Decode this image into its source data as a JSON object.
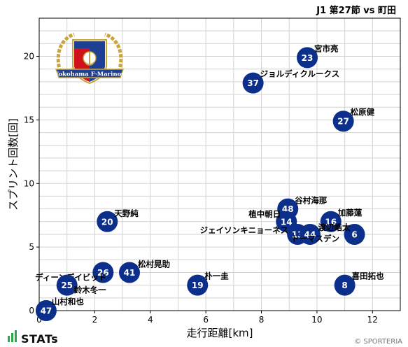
{
  "header": {
    "match_title": "J1 第27節 vs 町田"
  },
  "footer": {
    "brand": "STATs",
    "credit": "© SPORTERIA"
  },
  "logo": {
    "text": "Yokohama F·Marinos",
    "colors": {
      "gold": "#c9a43a",
      "blue": "#1d3f94",
      "red": "#d0121b"
    }
  },
  "chart_data": {
    "type": "scatter",
    "xlabel": "走行距離[km]",
    "ylabel": "スプリント回数[回]",
    "xlim": [
      0,
      13
    ],
    "ylim": [
      0,
      23
    ],
    "xticks": [
      0,
      2,
      4,
      6,
      8,
      10,
      12
    ],
    "yticks": [
      0,
      5,
      10,
      15,
      20
    ],
    "grid": true,
    "marker_color": "#0d2f8c",
    "points": [
      {
        "number": "23",
        "name": "宮市亮",
        "x": 9.65,
        "y": 19.9
      },
      {
        "number": "37",
        "name": "ジョルディクルークス",
        "x": 7.7,
        "y": 17.9
      },
      {
        "number": "27",
        "name": "松原健",
        "x": 10.95,
        "y": 14.9
      },
      {
        "number": "48",
        "name": "谷村海那",
        "x": 8.95,
        "y": 8.0
      },
      {
        "number": "14",
        "name": "植中朝日",
        "x": 8.9,
        "y": 7.0
      },
      {
        "number": "16",
        "name": "加藤蓮",
        "x": 10.5,
        "y": 7.0
      },
      {
        "number": "13",
        "name": "ジェイソンキニョーネス",
        "x": 9.3,
        "y": 6.0
      },
      {
        "number": "44",
        "name": "トーマスデン",
        "x": 9.75,
        "y": 6.0
      },
      {
        "number": "6",
        "name": "渡辺皓太",
        "x": 11.35,
        "y": 6.0
      },
      {
        "number": "20",
        "name": "天野純",
        "x": 2.45,
        "y": 7.0
      },
      {
        "number": "26",
        "name": "ディーンデイビッド",
        "x": 2.3,
        "y": 3.0
      },
      {
        "number": "41",
        "name": "松村晃助",
        "x": 3.25,
        "y": 3.0
      },
      {
        "number": "25",
        "name": "鈴木冬一",
        "x": 1.0,
        "y": 2.0
      },
      {
        "number": "19",
        "name": "朴一圭",
        "x": 5.7,
        "y": 2.0
      },
      {
        "number": "8",
        "name": "喜田拓也",
        "x": 11.0,
        "y": 2.0
      },
      {
        "number": "47",
        "name": "山村和也",
        "x": 0.25,
        "y": 0.0
      }
    ]
  }
}
